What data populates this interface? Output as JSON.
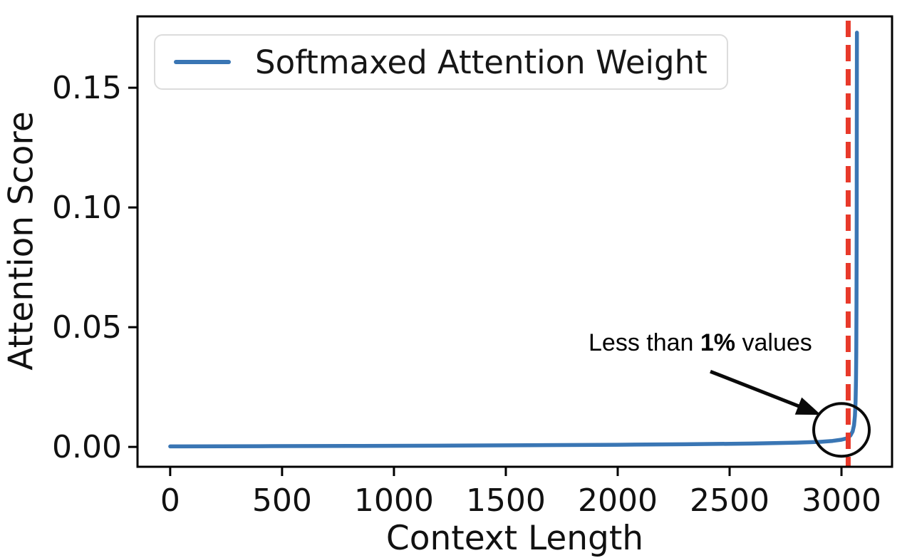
{
  "figure": {
    "background": "#ffffff"
  },
  "chart_data": {
    "type": "line",
    "title": "",
    "xlabel": "Context Length",
    "ylabel": "Attention Score",
    "x_ticks": [
      0,
      500,
      1000,
      1500,
      2000,
      2500,
      3000
    ],
    "x_tick_labels": [
      "0",
      "500",
      "1000",
      "1500",
      "2000",
      "2500",
      "3000"
    ],
    "y_ticks": [
      0,
      0.05,
      0.1,
      0.15
    ],
    "y_tick_labels": [
      "0.00",
      "0.05",
      "0.10",
      "0.15"
    ],
    "xlim": [
      -146,
      3226
    ],
    "ylim": [
      -0.0083,
      0.1798
    ],
    "grid": false,
    "legend": {
      "position": "upper left",
      "entries": [
        {
          "label": "Softmaxed Attention Weight",
          "color": "#3a76b4"
        }
      ]
    },
    "series": [
      {
        "name": "Softmaxed Attention Weight",
        "color": "#3a76b4",
        "points": [
          [
            0,
            0.0002
          ],
          [
            400,
            0.0003
          ],
          [
            800,
            0.0004
          ],
          [
            1200,
            0.0005
          ],
          [
            1600,
            0.0007
          ],
          [
            2000,
            0.0009
          ],
          [
            2300,
            0.0011
          ],
          [
            2600,
            0.0014
          ],
          [
            2800,
            0.0018
          ],
          [
            2900,
            0.0021
          ],
          [
            2960,
            0.0025
          ],
          [
            3000,
            0.003
          ],
          [
            3025,
            0.0036
          ],
          [
            3040,
            0.0048
          ],
          [
            3050,
            0.0065
          ],
          [
            3056,
            0.009
          ],
          [
            3060,
            0.013
          ],
          [
            3063,
            0.019
          ],
          [
            3065,
            0.028
          ],
          [
            3066,
            0.04
          ],
          [
            3067,
            0.06
          ],
          [
            3068,
            0.095
          ],
          [
            3068.5,
            0.13
          ],
          [
            3069,
            0.173
          ]
        ]
      }
    ],
    "vline": {
      "x": 3030,
      "color": "#e8392a",
      "style": "dashed",
      "width": 7
    },
    "annotation": {
      "text_prefix": "Less than ",
      "text_bold": "1%",
      "text_suffix": " values",
      "color": "#000000",
      "arrow_tail": {
        "x": 2414,
        "y": 0.0315
      },
      "arrow_tip": {
        "x": 2908,
        "y": 0.0134
      },
      "circle_center": {
        "x": 3000,
        "y": 0.0071
      }
    }
  }
}
